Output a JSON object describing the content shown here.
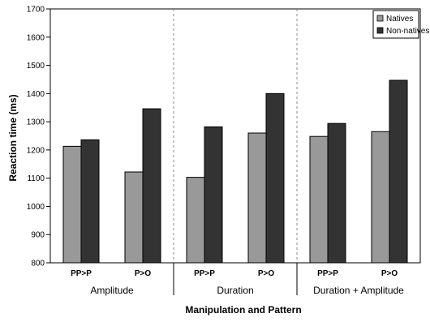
{
  "chart_data": {
    "type": "bar",
    "title": "",
    "xlabel": "Manipulation and Pattern",
    "ylabel": "Reaction time (ms)",
    "ylim": [
      800,
      1700
    ],
    "yticks": [
      800,
      900,
      1000,
      1100,
      1200,
      1300,
      1400,
      1500,
      1600,
      1700
    ],
    "categories": [
      "PP>P",
      "P>O",
      "PP>P",
      "P>O",
      "PP>P",
      "P>O"
    ],
    "groups": [
      "Amplitude",
      "Duration",
      "Duration + Amplitude"
    ],
    "series": [
      {
        "name": "Natives",
        "color": "#999999",
        "values": [
          1213,
          1122,
          1103,
          1260,
          1248,
          1265
        ]
      },
      {
        "name": "Non-natives",
        "color": "#333333",
        "values": [
          1236,
          1346,
          1282,
          1400,
          1294,
          1447
        ]
      }
    ],
    "grid": false,
    "group_dividers": "dashed",
    "legend": "top-right"
  }
}
